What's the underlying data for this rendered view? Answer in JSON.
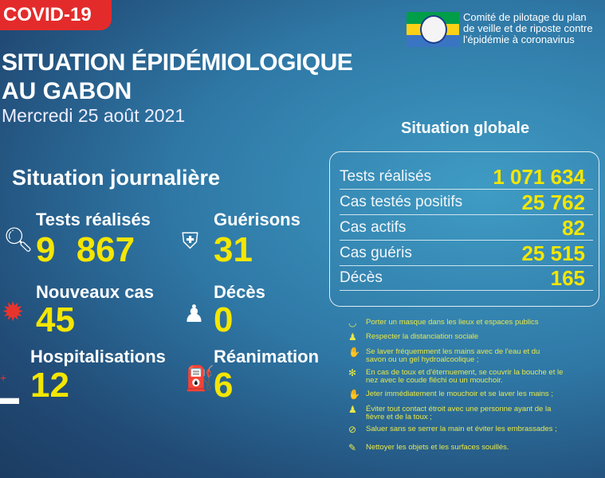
{
  "header": {
    "tag": "COVID-19",
    "title_line1": "SITUATION ÉPIDÉMIOLOGIQUE",
    "title_line2": "AU GABON",
    "date": "Mercredi 25 août 2021"
  },
  "organization": {
    "line1": "Comité de pilotage du plan",
    "line2": "de veille et de riposte contre",
    "line3": "l'épidémie à coronavirus",
    "flag_colors": [
      "#009e49",
      "#fcd116",
      "#3a75c4"
    ]
  },
  "daily": {
    "title": "Situation journalière",
    "stats": [
      {
        "label": "Tests réalisés",
        "value": "9 867",
        "icon": "magnifier-icon"
      },
      {
        "label": "Guérisons",
        "value": "31",
        "icon": "shield-cross-icon"
      },
      {
        "label": "Nouveaux cas",
        "value": "45",
        "icon": "virus-icon"
      },
      {
        "label": "Décès",
        "value": "0",
        "icon": "person-icon"
      },
      {
        "label": "Hospitalisations",
        "value": "12",
        "icon": "hospital-bed-icon"
      },
      {
        "label": "Réanimation",
        "value": "6",
        "icon": "oxygen-tank-icon"
      }
    ]
  },
  "global": {
    "title": "Situation globale",
    "rows": [
      {
        "label": "Tests réalisés",
        "value": "1 071 634"
      },
      {
        "label": "Cas testés positifs",
        "value": "25 762"
      },
      {
        "label": "Cas actifs",
        "value": "82"
      },
      {
        "label": "Cas guéris",
        "value": "25 515"
      },
      {
        "label": "Décès",
        "value": "165"
      }
    ]
  },
  "tips": [
    {
      "text": "Porter un masque dans les lieux et espaces publics"
    },
    {
      "text": "Respecter la distanciation sociale"
    },
    {
      "text": "Se laver fréquemment les mains avec de l'eau et du savon ou un gel hydroalcoolique ;"
    },
    {
      "text": "En cas de toux et d'éternuement, se couvrir la bouche et le nez avec le coude fléchi ou un mouchoir."
    },
    {
      "text": "Jeter immédiatement le mouchoir et se laver les mains ;"
    },
    {
      "text": "Éviter tout contact étroit avec une personne ayant de la fièvre et de la toux ;"
    },
    {
      "text": "Saluer sans se serrer la main et éviter les embrassades ;"
    },
    {
      "text": "Nettoyer les objets et les surfaces souillés."
    }
  ],
  "colors": {
    "accent": "#f4e600",
    "tag": "#e42b2b"
  }
}
